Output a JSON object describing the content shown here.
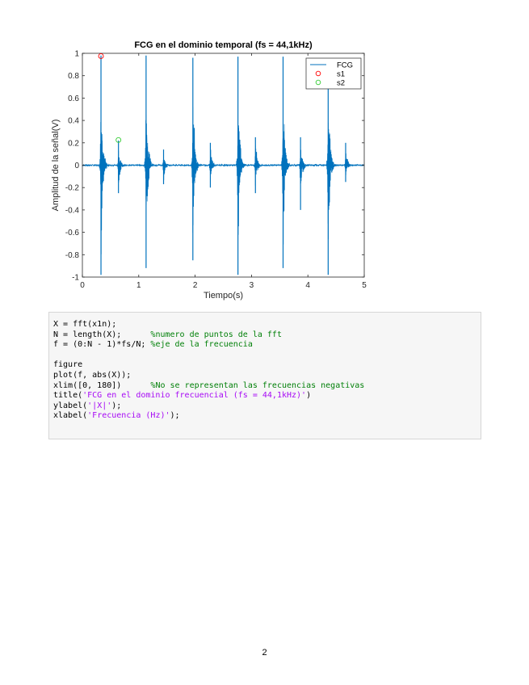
{
  "chart_data": {
    "type": "line",
    "title": "FCG en el dominio temporal (fs = 44,1kHz)",
    "xlabel": "Tiempo(s)",
    "ylabel": "Amplitud de la señal(V)",
    "xlim": [
      0,
      5
    ],
    "ylim": [
      -1,
      1
    ],
    "xticks": [
      "0",
      "1",
      "2",
      "3",
      "4",
      "5"
    ],
    "yticks": [
      "-1",
      "-0.8",
      "-0.6",
      "-0.4",
      "-0.2",
      "0",
      "0.2",
      "0.4",
      "0.6",
      "0.8",
      "1"
    ],
    "grid": false,
    "legend_position": "top-right",
    "series": [
      {
        "name": "FCG",
        "color": "#0072bd",
        "kind": "heart-sound waveform",
        "bursts": [
          {
            "t": 0.33,
            "max": 0.98,
            "min": -0.98
          },
          {
            "t": 0.64,
            "max": 0.22,
            "min": -0.25
          },
          {
            "t": 1.13,
            "max": 0.98,
            "min": -0.92
          },
          {
            "t": 1.44,
            "max": 0.14,
            "min": -0.17
          },
          {
            "t": 1.96,
            "max": 0.96,
            "min": -0.85
          },
          {
            "t": 2.27,
            "max": 0.2,
            "min": -0.2
          },
          {
            "t": 2.76,
            "max": 0.97,
            "min": -0.98
          },
          {
            "t": 3.07,
            "max": 0.25,
            "min": -0.25
          },
          {
            "t": 3.56,
            "max": 0.97,
            "min": -0.92
          },
          {
            "t": 3.87,
            "max": 0.25,
            "min": -0.4
          },
          {
            "t": 4.36,
            "max": 0.95,
            "min": -0.98
          },
          {
            "t": 4.67,
            "max": 0.2,
            "min": -0.15
          }
        ]
      },
      {
        "name": "s1",
        "color": "#ff0000",
        "marker": "circle",
        "points": [
          {
            "x": 0.33,
            "y": 0.975
          }
        ]
      },
      {
        "name": "s2",
        "color": "#33cc33",
        "marker": "circle",
        "points": [
          {
            "x": 0.64,
            "y": 0.225
          }
        ]
      }
    ]
  },
  "code": {
    "lines": [
      [
        {
          "t": "X = fft(x1n);",
          "c": "plain"
        }
      ],
      [
        {
          "t": "N = length(X);      ",
          "c": "plain"
        },
        {
          "t": "%numero de puntos de la fft",
          "c": "comment"
        }
      ],
      [
        {
          "t": "f = (0:N - 1)*fs/N; ",
          "c": "plain"
        },
        {
          "t": "%eje de la frecuencia",
          "c": "comment"
        }
      ],
      [
        {
          "t": "",
          "c": "plain"
        }
      ],
      [
        {
          "t": "figure",
          "c": "plain"
        }
      ],
      [
        {
          "t": "plot(f, abs(X));",
          "c": "plain"
        }
      ],
      [
        {
          "t": "xlim([0, 180])      ",
          "c": "plain"
        },
        {
          "t": "%No se representan las frecuencias negativas",
          "c": "comment"
        }
      ],
      [
        {
          "t": "title(",
          "c": "plain"
        },
        {
          "t": "'FCG en el dominio frecuencial (fs = 44,1kHz)'",
          "c": "string"
        },
        {
          "t": ")",
          "c": "plain"
        }
      ],
      [
        {
          "t": "ylabel(",
          "c": "plain"
        },
        {
          "t": "'|X|'",
          "c": "string"
        },
        {
          "t": ");",
          "c": "plain"
        }
      ],
      [
        {
          "t": "xlabel(",
          "c": "plain"
        },
        {
          "t": "'Frecuencia (Hz)'",
          "c": "string"
        },
        {
          "t": ");",
          "c": "plain"
        }
      ]
    ]
  },
  "page_number": "2"
}
